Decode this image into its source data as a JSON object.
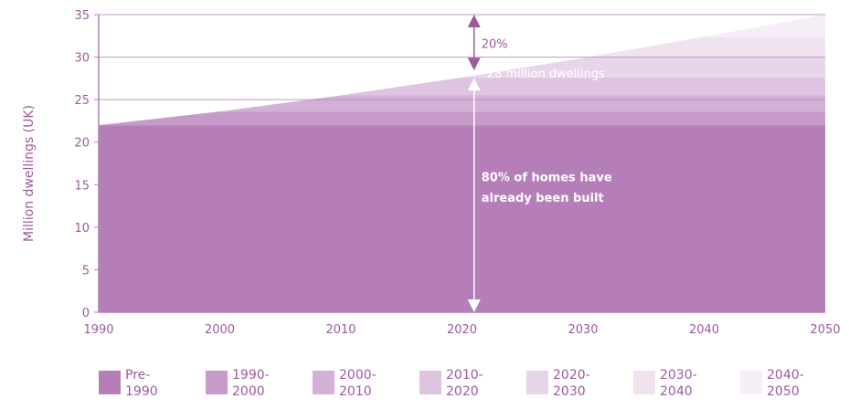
{
  "chart_data": {
    "type": "area",
    "ylabel": "Million dwellings (UK)",
    "xlabel": "",
    "ylim": [
      0,
      35
    ],
    "xlim": [
      1990,
      2050
    ],
    "x_ticks": [
      "1990",
      "2000",
      "2010",
      "2020",
      "2030",
      "2040",
      "2050"
    ],
    "y_ticks": [
      "0",
      "5",
      "10",
      "15",
      "20",
      "25",
      "30",
      "35"
    ],
    "grid": "horizontal",
    "legend_position": "bottom",
    "x": [
      1990,
      2000,
      2010,
      2020,
      2030,
      2040,
      2050
    ],
    "series": [
      {
        "name": "Pre-1990",
        "color": "#b57eb9",
        "values": [
          22,
          22,
          22,
          22,
          22,
          22,
          22
        ]
      },
      {
        "name": "1990-2000",
        "color": "#c69bca",
        "values": [
          0,
          1.6,
          1.6,
          1.6,
          1.6,
          1.6,
          1.6
        ]
      },
      {
        "name": "2000-2010",
        "color": "#d3b1d6",
        "values": [
          0,
          0,
          1.9,
          1.9,
          1.9,
          1.9,
          1.9
        ]
      },
      {
        "name": "2010-2020",
        "color": "#dec4e0",
        "values": [
          0,
          0,
          0,
          2.1,
          2.1,
          2.1,
          2.1
        ]
      },
      {
        "name": "2020-2030",
        "color": "#e7d5e9",
        "values": [
          0,
          0,
          0,
          0,
          2.3,
          2.3,
          2.3
        ]
      },
      {
        "name": "2030-2040",
        "color": "#efe3f0",
        "values": [
          0,
          0,
          0,
          0,
          0,
          2.5,
          2.5
        ]
      },
      {
        "name": "2040-2050",
        "color": "#f6eef7",
        "values": [
          0,
          0,
          0,
          0,
          0,
          0,
          2.6
        ]
      }
    ],
    "annotations": {
      "marker_year": 2021,
      "marker_top_value": 35,
      "marker_mid_value": 28,
      "pct_future": "20%",
      "current_stock": "28 million dwellings",
      "built_line1": "80% of homes have",
      "built_line2": "already been built"
    }
  },
  "legend": [
    {
      "line1": "Pre-",
      "line2": "1990",
      "color": "#b57eb9"
    },
    {
      "line1": "1990-",
      "line2": "2000",
      "color": "#c69bca"
    },
    {
      "line1": "2000-",
      "line2": "2010",
      "color": "#d3b1d6"
    },
    {
      "line1": "2010-",
      "line2": "2020",
      "color": "#dec4e0"
    },
    {
      "line1": "2020-",
      "line2": "2030",
      "color": "#e7d5e9"
    },
    {
      "line1": "2030-",
      "line2": "2040",
      "color": "#efe3f0"
    },
    {
      "line1": "2040-",
      "line2": "2050",
      "color": "#f6eef7"
    }
  ],
  "colors": {
    "axis": "#b57eb9",
    "text": "#9c5a9c",
    "arrow_dark": "#9c5a9c",
    "arrow_light": "#ffffff"
  }
}
